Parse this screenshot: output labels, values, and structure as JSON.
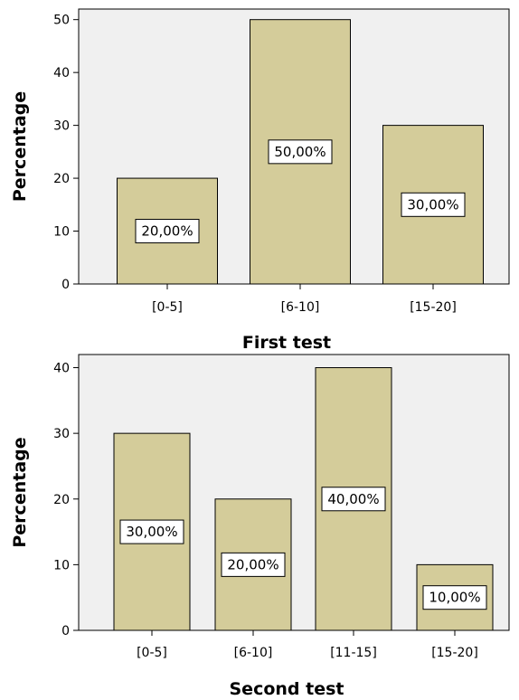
{
  "chart_data": [
    {
      "type": "bar",
      "categories": [
        "[0-5]",
        "[6-10]",
        "[15-20]"
      ],
      "values": [
        20,
        50,
        30
      ],
      "data_labels": [
        "20,00%",
        "50,00%",
        "30,00%"
      ],
      "xlabel": "First test",
      "ylabel": "Percentage",
      "ylim": [
        0,
        52
      ],
      "yticks": [
        0,
        10,
        20,
        30,
        40,
        50
      ],
      "grid": false,
      "bar_color": "#d4cc9a",
      "background_color": "#f0f0f0"
    },
    {
      "type": "bar",
      "categories": [
        "[0-5]",
        "[6-10]",
        "[11-15]",
        "[15-20]"
      ],
      "values": [
        30,
        20,
        40,
        10
      ],
      "data_labels": [
        "30,00%",
        "20,00%",
        "40,00%",
        "10,00%"
      ],
      "xlabel": "Second test",
      "ylabel": "Percentage",
      "ylim": [
        0,
        42
      ],
      "yticks": [
        0,
        10,
        20,
        30,
        40
      ],
      "grid": false,
      "bar_color": "#d4cc9a",
      "background_color": "#f0f0f0"
    }
  ]
}
